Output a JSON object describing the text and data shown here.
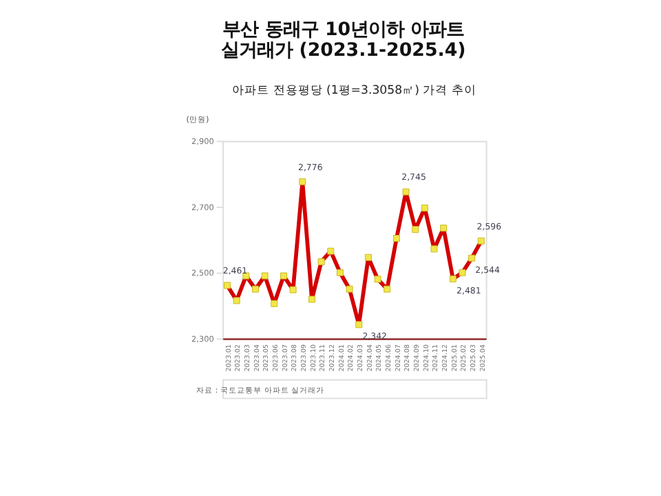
{
  "chart_data": {
    "type": "line",
    "title": "부산 동래구 10년이하 아파트 실거래가 (2023.1-2025.4)",
    "subtitle": "아파트 전용평당 (1평=3.3058㎡) 가격 추이",
    "ylabel": "(만원)",
    "categories": [
      "2023.01",
      "2023.02",
      "2023.03",
      "2023.04",
      "2023.05",
      "2023.06",
      "2023.07",
      "2023.08",
      "2023.09",
      "2023.10",
      "2023.11",
      "2023.12",
      "2024.01",
      "2024.02",
      "2024.03",
      "2024.04",
      "2024.05",
      "2024.06",
      "2024.07",
      "2024.08",
      "2024.09",
      "2024.10",
      "2024.11",
      "2024.12",
      "2025.01",
      "2025.02",
      "2025.03",
      "2025.04"
    ],
    "series": [
      {
        "color": "#d40000",
        "values": [
          2461,
          2415,
          2490,
          2450,
          2490,
          2406,
          2490,
          2448,
          2776,
          2419,
          2533,
          2565,
          2500,
          2450,
          2342,
          2546,
          2480,
          2450,
          2604,
          2745,
          2631,
          2696,
          2572,
          2635,
          2481,
          2500,
          2544,
          2596
        ],
        "value_labels": [
          "2,461",
          null,
          null,
          null,
          null,
          null,
          null,
          null,
          "2,776",
          null,
          null,
          null,
          null,
          null,
          "2,342",
          null,
          null,
          null,
          null,
          "2,745",
          null,
          null,
          null,
          null,
          "2,481",
          null,
          "2,544",
          "2,596"
        ]
      }
    ],
    "ylim": [
      2300,
      2900
    ],
    "yticks": [
      {
        "value": 2300,
        "label": "2,300"
      },
      {
        "value": 2500,
        "label": "2,500"
      },
      {
        "value": 2700,
        "label": "2,700"
      },
      {
        "value": 2900,
        "label": "2,900"
      }
    ],
    "marker": "square",
    "line_style": "solid",
    "grid": false,
    "annotations": [
      "자료 : 국토교통부 아파트 실거래가"
    ]
  }
}
